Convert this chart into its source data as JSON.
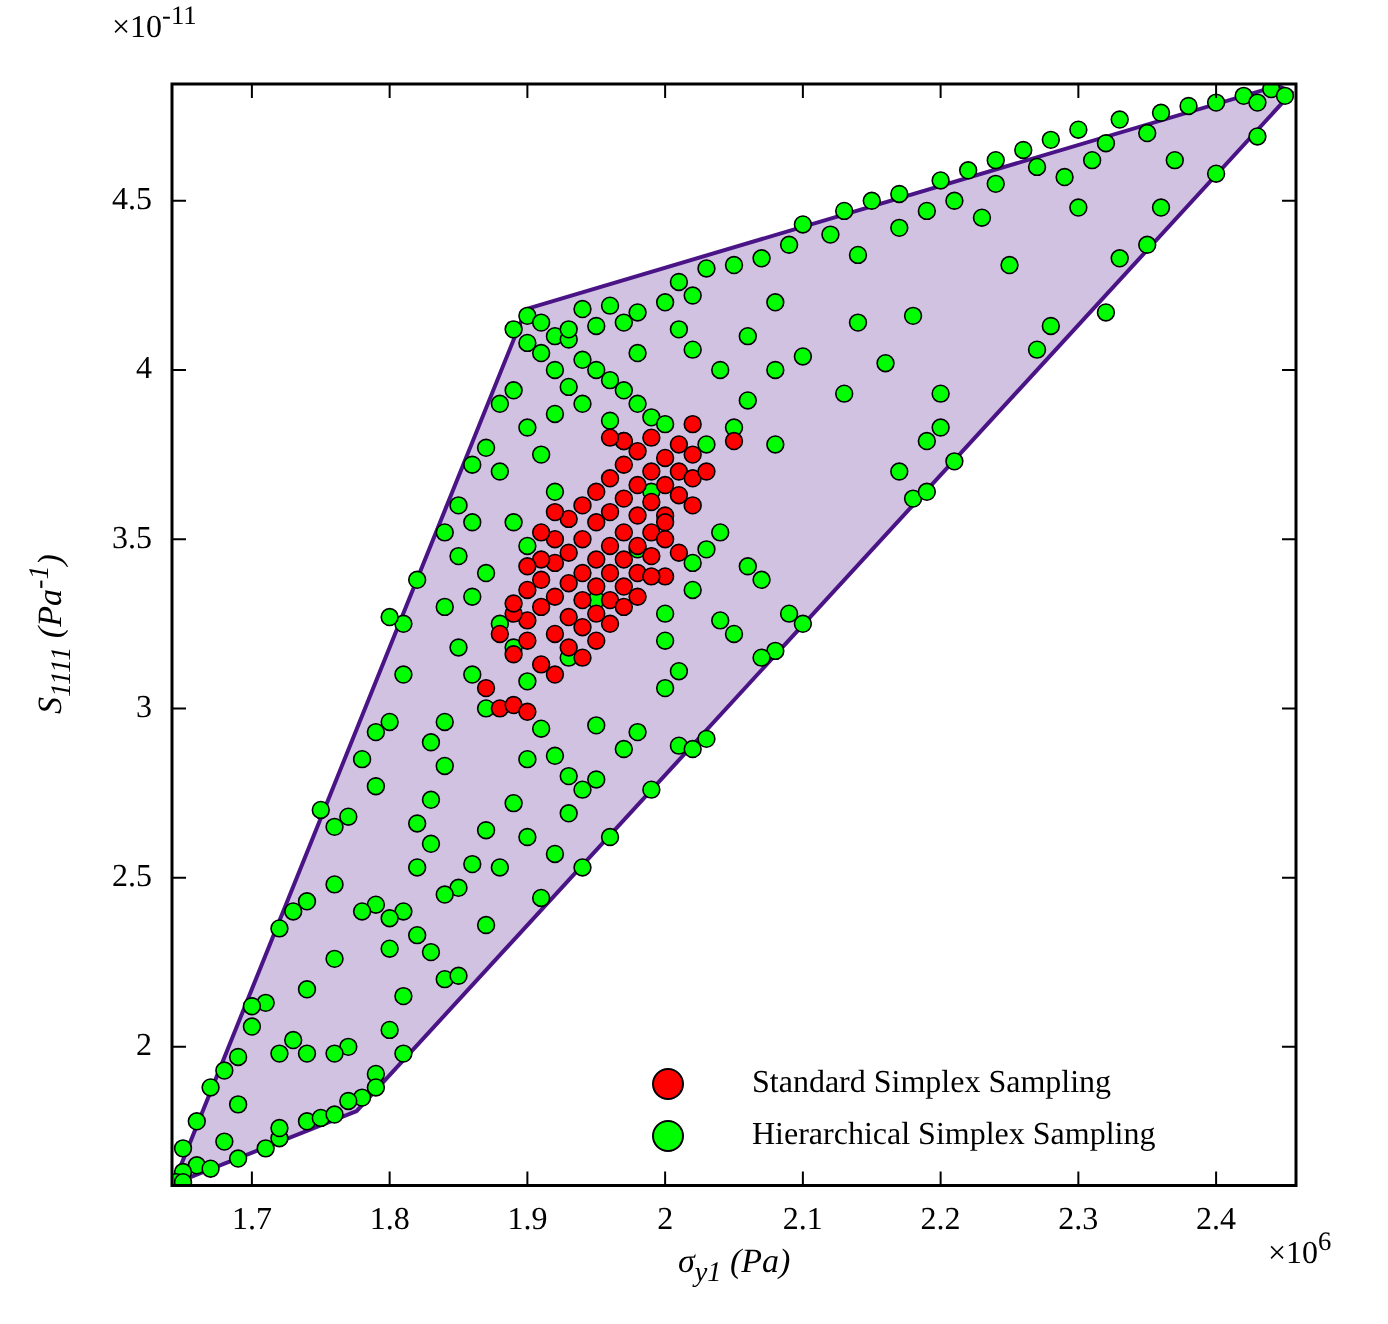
{
  "chart_data": {
    "type": "scatter",
    "xlabel": "σ$_{y1}$ (Pa)",
    "ylabel": "S$_{1111}$ (Pa$^{-1}$)",
    "annotations": [
      "×10$^{-11}$",
      "×10$^{6}$"
    ],
    "xlim": [
      1.642,
      2.458
    ],
    "ylim": [
      1.59,
      4.845
    ],
    "xticks": [
      1.7,
      1.8,
      1.9,
      2,
      2.1,
      2.2,
      2.3,
      2.4
    ],
    "yticks": [
      2,
      2.5,
      3,
      3.5,
      4,
      4.5
    ],
    "grid": false,
    "legend": "bottom right",
    "series": [
      {
        "type": "area",
        "color": "#4a1487",
        "x": [
          1.643,
          1.776,
          2.455,
          2.445,
          1.899,
          1.643
        ],
        "values": [
          1.595,
          1.81,
          4.82,
          4.84,
          4.18,
          1.595
        ]
      },
      {
        "type": "scatter",
        "marker": "circle",
        "name": "Standard Simplex Sampling",
        "color": "#ff0000",
        "x": [
          1.89,
          1.9,
          1.91,
          1.92,
          1.9,
          1.91,
          1.92,
          1.93,
          1.89,
          1.9,
          1.91,
          1.92,
          1.93,
          1.94,
          1.92,
          1.93,
          1.94,
          1.95,
          1.91,
          1.93,
          1.94,
          1.95,
          1.96,
          1.92,
          1.94,
          1.95,
          1.96,
          1.97,
          1.93,
          1.95,
          1.96,
          1.97,
          1.98,
          1.94,
          1.96,
          1.97,
          1.98,
          1.99,
          1.95,
          1.97,
          1.98,
          1.99,
          2,
          1.96,
          1.98,
          1.99,
          2,
          1.97,
          1.99,
          2,
          2.01,
          2.02,
          1.98,
          2,
          2.01,
          2.02,
          2.03,
          1.99,
          2.01,
          2.02,
          1.97,
          1.96,
          2.02,
          2.05,
          2,
          1.87,
          1.88,
          1.89,
          1.9,
          1.88,
          1.89,
          1.9,
          1.91,
          1.92,
          1.96,
          1.97,
          1.95,
          1.94,
          1.99,
          2.01,
          1.98,
          2
        ],
        "values": [
          3.16,
          3.2,
          3.13,
          3.1,
          3.26,
          3.3,
          3.22,
          3.18,
          3.28,
          3.35,
          3.38,
          3.33,
          3.27,
          3.24,
          3.43,
          3.37,
          3.32,
          3.28,
          3.44,
          3.46,
          3.4,
          3.36,
          3.32,
          3.5,
          3.5,
          3.44,
          3.4,
          3.36,
          3.56,
          3.55,
          3.48,
          3.44,
          3.4,
          3.6,
          3.58,
          3.52,
          3.48,
          3.45,
          3.64,
          3.62,
          3.57,
          3.52,
          3.5,
          3.68,
          3.66,
          3.61,
          3.57,
          3.72,
          3.7,
          3.66,
          3.63,
          3.6,
          3.76,
          3.74,
          3.7,
          3.68,
          3.7,
          3.8,
          3.78,
          3.75,
          3.79,
          3.8,
          3.84,
          3.79,
          3.39,
          3.06,
          3,
          3.01,
          2.99,
          3.22,
          3.31,
          3.42,
          3.52,
          3.58,
          3.25,
          3.3,
          3.2,
          3.15,
          3.39,
          3.46,
          3.33,
          3.55
        ]
      },
      {
        "type": "scatter",
        "marker": "circle",
        "name": "Hierarchical Simplex Sampling",
        "color": "#00ff00",
        "x": [
          1.9,
          1.91,
          1.89,
          1.92,
          1.9,
          1.93,
          1.91,
          1.94,
          1.95,
          1.96,
          1.97,
          1.98,
          1.99,
          2,
          1.93,
          1.95,
          1.97,
          1.98,
          2,
          2.02,
          2.01,
          2.03,
          2.05,
          2.07,
          2.09,
          2.1,
          2.13,
          2.15,
          2.17,
          2.2,
          2.22,
          2.24,
          2.26,
          2.28,
          2.3,
          2.33,
          2.36,
          2.38,
          2.4,
          2.42,
          2.44,
          2.45,
          2.43,
          2.12,
          2.14,
          2.17,
          2.19,
          2.21,
          2.23,
          2.25,
          2.24,
          2.27,
          2.29,
          2.31,
          2.32,
          2.35,
          2.3,
          2.33,
          2.32,
          2.28,
          2.27,
          2.37,
          2.4,
          2.43,
          2.36,
          2.35,
          2.18,
          2.16,
          2.2,
          2.14,
          2.13,
          2.08,
          2.06,
          2.04,
          2.02,
          2.08,
          2.1,
          2.2,
          2.19,
          2.21,
          2.17,
          2.18,
          2.19,
          2.08,
          2.05,
          2.03,
          2.06,
          1.98,
          2.01,
          1.96,
          1.94,
          2.09,
          2.1,
          2.08,
          2.07,
          2.06,
          2.07,
          2.04,
          2.03,
          2.02,
          2.04,
          2.05,
          2.02,
          2,
          2,
          2.01,
          2,
          2.01,
          2.02,
          2.03,
          1.99,
          1.97,
          1.98,
          1.95,
          1.96,
          1.94,
          1.93,
          1.91,
          1.92,
          1.9,
          1.89,
          1.88,
          1.87,
          1.87,
          1.86,
          1.85,
          1.88,
          1.89,
          1.87,
          1.86,
          1.88,
          1.85,
          1.86,
          1.84,
          1.85,
          1.86,
          1.87,
          1.84,
          1.85,
          1.86,
          1.87,
          1.84,
          1.83,
          1.84,
          1.83,
          1.82,
          1.83,
          1.82,
          1.84,
          1.81,
          1.82,
          1.83,
          1.84,
          1.85,
          1.81,
          1.8,
          1.81,
          1.79,
          1.78,
          1.79,
          1.77,
          1.81,
          1.81,
          1.82,
          1.8,
          1.79,
          1.78,
          1.8,
          1.79,
          1.8,
          1.79,
          1.78,
          1.8,
          1.77,
          1.76,
          1.75,
          1.76,
          1.74,
          1.73,
          1.72,
          1.74,
          1.76,
          1.77,
          1.73,
          1.72,
          1.71,
          1.7,
          1.7,
          1.69,
          1.68,
          1.67,
          1.69,
          1.66,
          1.68,
          1.65,
          1.66,
          1.65,
          1.645,
          1.65,
          1.67,
          1.69,
          1.71,
          1.72,
          1.74,
          1.75,
          1.76,
          1.72,
          1.76,
          1.74,
          1.91,
          1.9,
          1.92,
          1.89,
          1.9,
          1.88,
          1.89,
          1.9,
          1.91,
          1.92,
          1.93,
          1.94,
          1.95,
          1.9,
          1.93,
          1.95,
          1.98,
          1.99,
          1.96,
          1.92,
          1.94,
          1.97,
          1.93,
          1.92
        ],
        "values": [
          4.16,
          4.14,
          4.12,
          4.1,
          4.08,
          4.09,
          4.05,
          4.03,
          4,
          3.97,
          3.94,
          3.9,
          3.86,
          3.84,
          4.12,
          4.13,
          4.14,
          4.17,
          4.2,
          4.22,
          4.26,
          4.3,
          4.31,
          4.33,
          4.37,
          4.43,
          4.47,
          4.5,
          4.52,
          4.56,
          4.59,
          4.62,
          4.65,
          4.68,
          4.71,
          4.74,
          4.76,
          4.78,
          4.79,
          4.81,
          4.83,
          4.81,
          4.79,
          4.4,
          4.34,
          4.42,
          4.47,
          4.5,
          4.45,
          4.31,
          4.55,
          4.6,
          4.57,
          4.62,
          4.67,
          4.7,
          4.48,
          4.33,
          4.17,
          4.13,
          4.06,
          4.62,
          4.58,
          4.69,
          4.48,
          4.37,
          4.16,
          4.02,
          3.93,
          4.14,
          3.93,
          4.2,
          4.1,
          4,
          4.06,
          4,
          4.04,
          3.83,
          3.79,
          3.73,
          3.7,
          3.62,
          3.64,
          3.78,
          3.83,
          3.78,
          3.91,
          4.05,
          4.12,
          4.19,
          4.18,
          3.28,
          3.25,
          3.17,
          3.15,
          3.42,
          3.38,
          3.52,
          3.47,
          3.43,
          3.26,
          3.22,
          3.35,
          3.28,
          3.2,
          3.11,
          3.06,
          2.89,
          2.88,
          2.91,
          2.76,
          2.88,
          2.93,
          2.79,
          2.62,
          2.53,
          2.69,
          2.44,
          2.57,
          2.62,
          2.72,
          2.53,
          2.64,
          2.36,
          2.54,
          2.47,
          3.9,
          3.94,
          3.77,
          3.72,
          3.7,
          3.6,
          3.55,
          3.52,
          3.45,
          3.33,
          3.4,
          3.3,
          3.18,
          3.1,
          3,
          2.96,
          2.9,
          2.83,
          2.73,
          2.66,
          2.6,
          2.53,
          2.45,
          2.4,
          2.33,
          2.28,
          2.2,
          2.21,
          2.15,
          2.05,
          1.98,
          1.92,
          1.85,
          1.88,
          1.84,
          3.25,
          3.1,
          3.38,
          3.27,
          2.93,
          2.85,
          2.96,
          2.77,
          2.38,
          2.42,
          2.4,
          2.29,
          2.68,
          2.65,
          2.7,
          2.48,
          2.43,
          2.4,
          2.35,
          2.17,
          2.26,
          2,
          2.02,
          1.98,
          2.13,
          2.12,
          2.06,
          1.97,
          1.93,
          1.88,
          1.83,
          1.78,
          1.72,
          1.7,
          1.65,
          1.63,
          1.6,
          1.6,
          1.64,
          1.67,
          1.7,
          1.73,
          1.78,
          1.79,
          1.8,
          1.76,
          1.98,
          1.98,
          3.75,
          3.83,
          3.64,
          3.55,
          3.48,
          3.25,
          3.18,
          3.08,
          2.94,
          2.86,
          2.8,
          2.76,
          2.95,
          2.85,
          3.15,
          3.32,
          3.47,
          3.64,
          3.85,
          3.87,
          3.9,
          3.79,
          3.95,
          4
        ]
      }
    ]
  }
}
